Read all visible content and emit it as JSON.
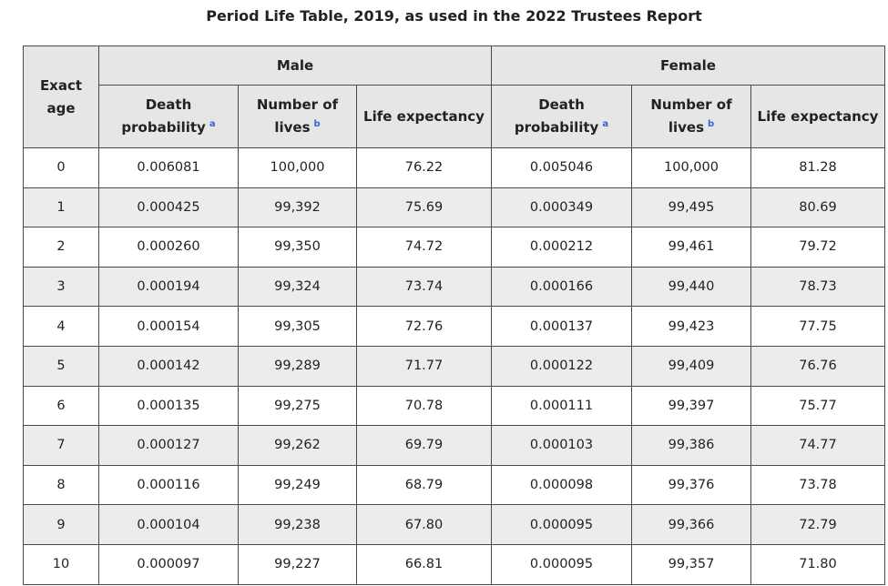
{
  "caption": "Period Life Table, 2019, as used in the 2022 Trustees Report",
  "headers": {
    "exact_age": "Exact age",
    "male": "Male",
    "female": "Female",
    "death_probability": "Death probability",
    "number_of_lives": "Number of lives",
    "life_expectancy": "Life expectancy",
    "note_a": "a",
    "note_b": "b"
  },
  "rows": [
    {
      "age": "0",
      "male_prob": "0.006081",
      "male_lives": "100,000",
      "male_le": "76.22",
      "female_prob": "0.005046",
      "female_lives": "100,000",
      "female_le": "81.28"
    },
    {
      "age": "1",
      "male_prob": "0.000425",
      "male_lives": "99,392",
      "male_le": "75.69",
      "female_prob": "0.000349",
      "female_lives": "99,495",
      "female_le": "80.69"
    },
    {
      "age": "2",
      "male_prob": "0.000260",
      "male_lives": "99,350",
      "male_le": "74.72",
      "female_prob": "0.000212",
      "female_lives": "99,461",
      "female_le": "79.72"
    },
    {
      "age": "3",
      "male_prob": "0.000194",
      "male_lives": "99,324",
      "male_le": "73.74",
      "female_prob": "0.000166",
      "female_lives": "99,440",
      "female_le": "78.73"
    },
    {
      "age": "4",
      "male_prob": "0.000154",
      "male_lives": "99,305",
      "male_le": "72.76",
      "female_prob": "0.000137",
      "female_lives": "99,423",
      "female_le": "77.75"
    },
    {
      "age": "5",
      "male_prob": "0.000142",
      "male_lives": "99,289",
      "male_le": "71.77",
      "female_prob": "0.000122",
      "female_lives": "99,409",
      "female_le": "76.76"
    },
    {
      "age": "6",
      "male_prob": "0.000135",
      "male_lives": "99,275",
      "male_le": "70.78",
      "female_prob": "0.000111",
      "female_lives": "99,397",
      "female_le": "75.77"
    },
    {
      "age": "7",
      "male_prob": "0.000127",
      "male_lives": "99,262",
      "male_le": "69.79",
      "female_prob": "0.000103",
      "female_lives": "99,386",
      "female_le": "74.77"
    },
    {
      "age": "8",
      "male_prob": "0.000116",
      "male_lives": "99,249",
      "male_le": "68.79",
      "female_prob": "0.000098",
      "female_lives": "99,376",
      "female_le": "73.78"
    },
    {
      "age": "9",
      "male_prob": "0.000104",
      "male_lives": "99,238",
      "male_le": "67.80",
      "female_prob": "0.000095",
      "female_lives": "99,366",
      "female_le": "72.79"
    },
    {
      "age": "10",
      "male_prob": "0.000097",
      "male_lives": "99,227",
      "male_le": "66.81",
      "female_prob": "0.000095",
      "female_lives": "99,357",
      "female_le": "71.80"
    }
  ]
}
